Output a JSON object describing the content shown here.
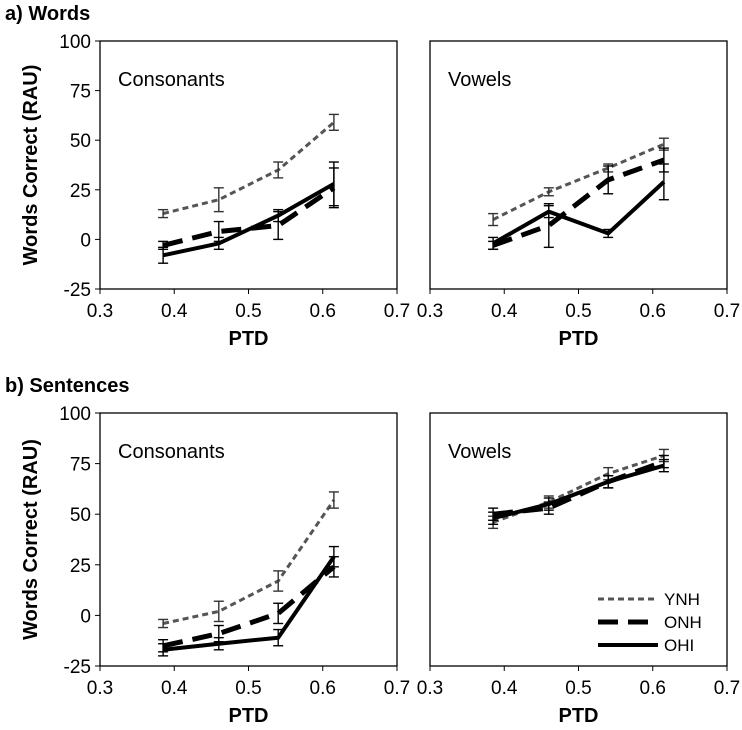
{
  "figure": {
    "sections": [
      {
        "id": "a",
        "title": "a) Words"
      },
      {
        "id": "b",
        "title": "b) Sentences"
      }
    ]
  },
  "legend": {
    "placement": "bottom-right of sentences vowels panel",
    "entries": [
      {
        "name": "YNH",
        "style": "short-dash",
        "color": "#555555"
      },
      {
        "name": "ONH",
        "style": "long-dash",
        "color": "#000000"
      },
      {
        "name": "OHI",
        "style": "solid",
        "color": "#000000"
      }
    ]
  },
  "chart_data": [
    {
      "type": "line",
      "section": "a) Words",
      "title": "Consonants",
      "xlabel": "PTD",
      "ylabel": "Words Correct (RAU)",
      "xlim": [
        0.3,
        0.7
      ],
      "ylim": [
        -25,
        100
      ],
      "xticks": [
        "0.3",
        "0.4",
        "0.5",
        "0.6",
        "0.7"
      ],
      "yticks": [
        "-25",
        "0",
        "25",
        "50",
        "75",
        "100"
      ],
      "x": [
        0.385,
        0.46,
        0.54,
        0.615
      ],
      "series": [
        {
          "name": "YNH",
          "values": [
            13,
            20,
            35,
            59
          ],
          "error": [
            2,
            6,
            4,
            4
          ]
        },
        {
          "name": "ONH",
          "values": [
            -3,
            4,
            7,
            26
          ],
          "error": [
            2,
            5,
            7,
            10
          ]
        },
        {
          "name": "OHI",
          "values": [
            -8,
            -2,
            12,
            28
          ],
          "error": [
            4,
            3,
            3,
            11
          ]
        }
      ]
    },
    {
      "type": "line",
      "section": "a) Words",
      "title": "Vowels",
      "xlabel": "PTD",
      "ylabel": "",
      "xlim": [
        0.3,
        0.7
      ],
      "ylim": [
        -25,
        100
      ],
      "xticks": [
        "0.3",
        "0.4",
        "0.5",
        "0.6",
        "0.7"
      ],
      "yticks": [],
      "x": [
        0.385,
        0.46,
        0.54,
        0.615
      ],
      "series": [
        {
          "name": "YNH",
          "values": [
            10,
            24,
            36,
            48
          ],
          "error": [
            3,
            2,
            2,
            3
          ]
        },
        {
          "name": "ONH",
          "values": [
            -3,
            7,
            30,
            40
          ],
          "error": [
            2,
            11,
            7,
            6
          ]
        },
        {
          "name": "OHI",
          "values": [
            -2,
            14,
            3,
            29
          ],
          "error": [
            3,
            3,
            2,
            9
          ]
        }
      ]
    },
    {
      "type": "line",
      "section": "b) Sentences",
      "title": "Consonants",
      "xlabel": "PTD",
      "ylabel": "Words Correct (RAU)",
      "xlim": [
        0.3,
        0.7
      ],
      "ylim": [
        -25,
        100
      ],
      "xticks": [
        "0.3",
        "0.4",
        "0.5",
        "0.6",
        "0.7"
      ],
      "yticks": [
        "-25",
        "0",
        "25",
        "50",
        "75",
        "100"
      ],
      "x": [
        0.385,
        0.46,
        0.54,
        0.615
      ],
      "series": [
        {
          "name": "YNH",
          "values": [
            -4,
            2,
            17,
            57
          ],
          "error": [
            2,
            5,
            5,
            4
          ]
        },
        {
          "name": "ONH",
          "values": [
            -15,
            -9,
            1,
            24
          ],
          "error": [
            3,
            4,
            5,
            5
          ]
        },
        {
          "name": "OHI",
          "values": [
            -17,
            -14,
            -11,
            29
          ],
          "error": [
            3,
            3,
            4,
            5
          ]
        }
      ]
    },
    {
      "type": "line",
      "section": "b) Sentences",
      "title": "Vowels",
      "xlabel": "PTD",
      "ylabel": "",
      "xlim": [
        0.3,
        0.7
      ],
      "ylim": [
        -25,
        100
      ],
      "xticks": [
        "0.3",
        "0.4",
        "0.5",
        "0.6",
        "0.7"
      ],
      "yticks": [],
      "x": [
        0.385,
        0.46,
        0.54,
        0.615
      ],
      "series": [
        {
          "name": "YNH",
          "values": [
            46,
            56,
            70,
            79
          ],
          "error": [
            3,
            3,
            3,
            3
          ]
        },
        {
          "name": "ONH",
          "values": [
            50,
            53,
            66,
            76
          ],
          "error": [
            3,
            3,
            3,
            3
          ]
        },
        {
          "name": "OHI",
          "values": [
            48,
            55,
            66,
            74
          ],
          "error": [
            3,
            3,
            3,
            3
          ]
        }
      ]
    }
  ]
}
